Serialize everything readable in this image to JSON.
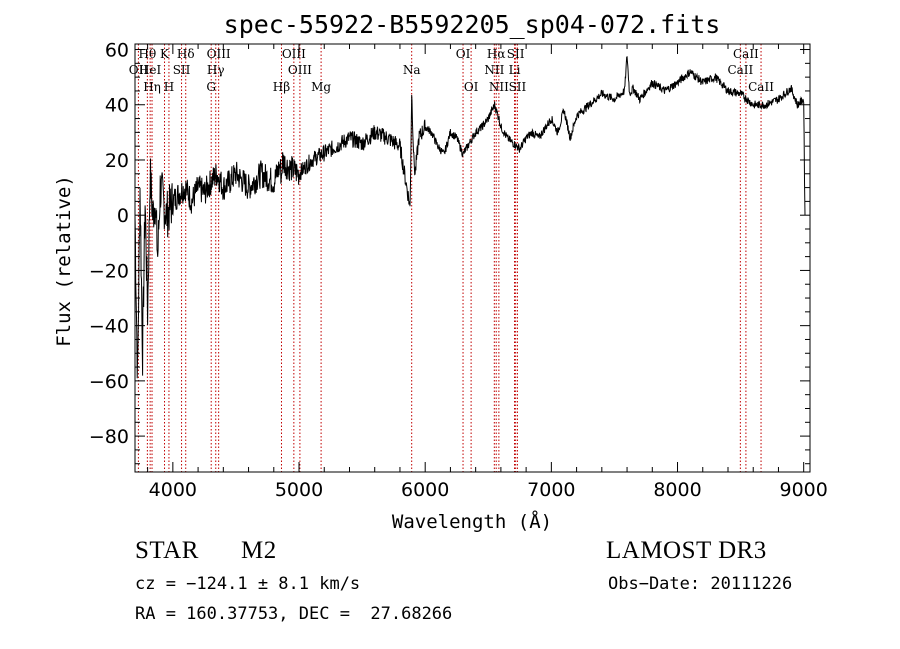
{
  "chart_data": {
    "type": "line",
    "title": "spec-55922-B5592205_sp04-072.fits",
    "xlabel": "Wavelength (Å)",
    "ylabel": "Flux (relative)",
    "xlim": [
      3700,
      9050
    ],
    "ylim": [
      -93,
      62
    ],
    "xticks": [
      4000,
      5000,
      6000,
      7000,
      8000,
      9000
    ],
    "yticks": [
      -80,
      -60,
      -40,
      -20,
      0,
      20,
      40,
      60
    ],
    "x_tick_labels": [
      "4000",
      "5000",
      "6000",
      "7000",
      "8000",
      "9000"
    ],
    "y_tick_labels": [
      "−80",
      "−60",
      "−40",
      "−20",
      "0",
      "20",
      "40",
      "60"
    ],
    "series": [
      {
        "name": "flux",
        "x": [
          3700,
          3720,
          3740,
          3760,
          3780,
          3800,
          3820,
          3840,
          3860,
          3880,
          3900,
          3950,
          4000,
          4050,
          4100,
          4150,
          4200,
          4250,
          4300,
          4350,
          4400,
          4450,
          4500,
          4600,
          4700,
          4800,
          4850,
          4860,
          4870,
          4900,
          5000,
          5100,
          5180,
          5300,
          5400,
          5500,
          5600,
          5700,
          5800,
          5880,
          5893,
          5910,
          5920,
          5950,
          6000,
          6050,
          6100,
          6150,
          6200,
          6250,
          6300,
          6350,
          6400,
          6450,
          6500,
          6550,
          6563,
          6580,
          6600,
          6650,
          6700,
          6750,
          6800,
          6850,
          6900,
          7000,
          7050,
          7100,
          7150,
          7200,
          7300,
          7400,
          7500,
          7580,
          7600,
          7620,
          7650,
          7700,
          7800,
          7900,
          8000,
          8100,
          8200,
          8300,
          8400,
          8500,
          8600,
          8700,
          8800,
          8900,
          8950,
          9000,
          9010
        ],
        "y": [
          0,
          -60,
          10,
          -50,
          5,
          -35,
          15,
          0,
          5,
          -15,
          10,
          0,
          5,
          8,
          10,
          5,
          10,
          8,
          12,
          15,
          10,
          12,
          15,
          10,
          15,
          12,
          18,
          14,
          20,
          18,
          15,
          20,
          22,
          25,
          28,
          26,
          30,
          28,
          25,
          3,
          45,
          20,
          15,
          28,
          32,
          30,
          25,
          22,
          30,
          28,
          22,
          26,
          30,
          32,
          35,
          40,
          38,
          36,
          32,
          28,
          26,
          24,
          28,
          30,
          28,
          35,
          30,
          38,
          28,
          36,
          40,
          44,
          42,
          45,
          58,
          44,
          46,
          42,
          48,
          45,
          48,
          52,
          48,
          50,
          45,
          44,
          40,
          40,
          42,
          46,
          40,
          42,
          0
        ]
      }
    ],
    "line_markers": [
      {
        "label": "Hθ",
        "x": 3798
      },
      {
        "label": "K",
        "x": 3934
      },
      {
        "label": "Hδ",
        "x": 4102
      },
      {
        "label": "OII",
        "x": 3727
      },
      {
        "label": "HeI",
        "x": 3820
      },
      {
        "label": "SII",
        "x": 4069
      },
      {
        "label": "OIII",
        "x": 4363
      },
      {
        "label": "Hγ",
        "x": 4340
      },
      {
        "label": "G",
        "x": 4304
      },
      {
        "label": "Hη",
        "x": 3835
      },
      {
        "label": "H",
        "x": 3969
      },
      {
        "label": "OIII",
        "x": 4959
      },
      {
        "label": "OIII",
        "x": 5007
      },
      {
        "label": "Hβ",
        "x": 4861
      },
      {
        "label": "Mg",
        "x": 5175
      },
      {
        "label": "Na",
        "x": 5893
      },
      {
        "label": "OI",
        "x": 6300
      },
      {
        "label": "OI",
        "x": 6364
      },
      {
        "label": "Hα",
        "x": 6563
      },
      {
        "label": "SII",
        "x": 6717
      },
      {
        "label": "NII",
        "x": 6548
      },
      {
        "label": "Li",
        "x": 6708
      },
      {
        "label": "NII",
        "x": 6584
      },
      {
        "label": "SII",
        "x": 6731
      },
      {
        "label": "CaII",
        "x": 8542
      },
      {
        "label": "CaII",
        "x": 8498
      },
      {
        "label": "CaII",
        "x": 8662
      }
    ]
  },
  "info": {
    "object_class": "STAR",
    "subclass": "M2",
    "survey": "LAMOST DR3",
    "cz": "cz = −124.1 ± 8.1 km/s",
    "obs_date": "Obs−Date: 20111226",
    "coords": "RA = 160.37753, DEC =  27.68266"
  },
  "colors": {
    "spectrum": "#000000",
    "marker_line": "#c00000",
    "axis": "#000000"
  }
}
